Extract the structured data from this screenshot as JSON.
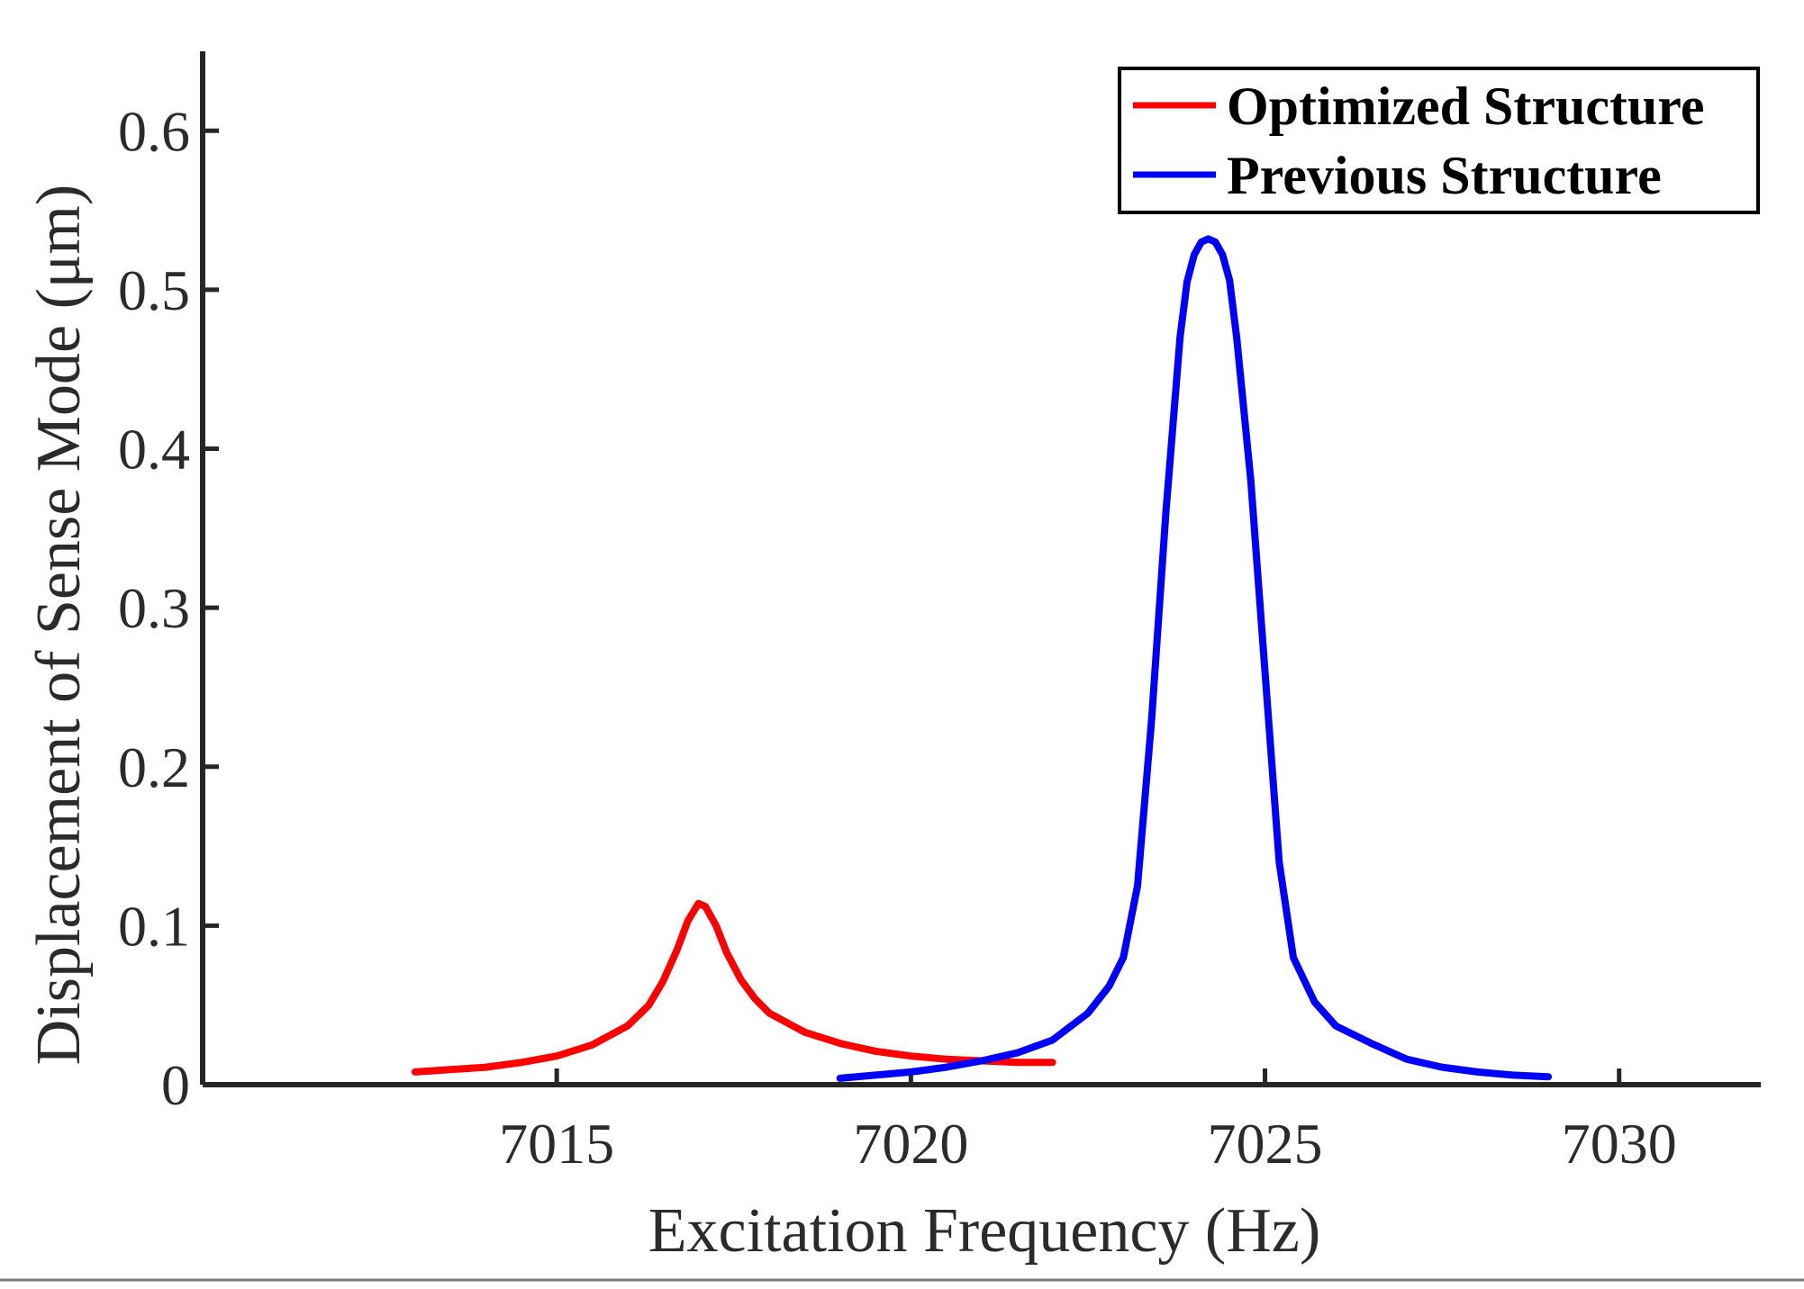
{
  "chart_data": {
    "type": "line",
    "title": "",
    "xlabel": "Excitation Frequency (Hz)",
    "ylabel": "Displacement of Sense Mode (μm)",
    "xlim": [
      7010,
      7032
    ],
    "ylim": [
      0,
      0.65
    ],
    "xticks": [
      7015,
      7020,
      7025,
      7030
    ],
    "xtick_labels": [
      "7015",
      "7020",
      "7025",
      "7030"
    ],
    "yticks": [
      0,
      0.1,
      0.2,
      0.3,
      0.4,
      0.5,
      0.6
    ],
    "ytick_labels": [
      "0",
      "0.1",
      "0.2",
      "0.3",
      "0.4",
      "0.5",
      "0.6"
    ],
    "grid": false,
    "legend_position": "top-right",
    "series": [
      {
        "name": "Optimized Structure",
        "color": "#ff0000",
        "x": [
          7013.0,
          7014.0,
          7014.5,
          7015.0,
          7015.5,
          7016.0,
          7016.3,
          7016.5,
          7016.7,
          7016.85,
          7017.0,
          7017.1,
          7017.25,
          7017.4,
          7017.6,
          7017.8,
          7018.0,
          7018.5,
          7019.0,
          7019.5,
          7020.0,
          7020.5,
          7021.0,
          7021.5,
          7022.0
        ],
        "y": [
          0.008,
          0.011,
          0.014,
          0.018,
          0.025,
          0.037,
          0.05,
          0.065,
          0.085,
          0.103,
          0.114,
          0.112,
          0.1,
          0.083,
          0.066,
          0.054,
          0.045,
          0.033,
          0.026,
          0.021,
          0.018,
          0.016,
          0.015,
          0.014,
          0.014
        ]
      },
      {
        "name": "Previous Structure",
        "color": "#0000ff",
        "x": [
          7019.0,
          7019.5,
          7020.0,
          7020.5,
          7021.0,
          7021.5,
          7022.0,
          7022.5,
          7022.8,
          7023.0,
          7023.2,
          7023.4,
          7023.6,
          7023.8,
          7023.9,
          7024.0,
          7024.1,
          7024.2,
          7024.3,
          7024.4,
          7024.5,
          7024.6,
          7024.8,
          7025.0,
          7025.2,
          7025.4,
          7025.7,
          7026.0,
          7026.5,
          7027.0,
          7027.5,
          7028.0,
          7028.5,
          7029.0
        ],
        "y": [
          0.004,
          0.006,
          0.008,
          0.011,
          0.015,
          0.02,
          0.028,
          0.045,
          0.062,
          0.08,
          0.125,
          0.23,
          0.36,
          0.47,
          0.505,
          0.522,
          0.53,
          0.532,
          0.53,
          0.522,
          0.506,
          0.47,
          0.38,
          0.26,
          0.14,
          0.08,
          0.052,
          0.037,
          0.026,
          0.016,
          0.011,
          0.008,
          0.006,
          0.005
        ]
      }
    ]
  }
}
